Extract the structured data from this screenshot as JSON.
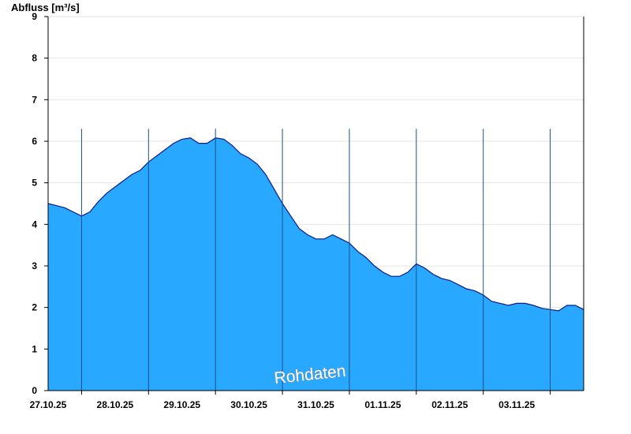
{
  "chart_data": {
    "type": "area",
    "ylabel": "Abfluss [m³/s]",
    "ylim": [
      0,
      9
    ],
    "yticks": [
      0,
      1,
      2,
      3,
      4,
      5,
      6,
      7,
      8,
      9
    ],
    "xlim": [
      "26.10.25 12:00",
      "03.11.25 12:00"
    ],
    "day_boundaries": [
      "27.10.25 00:00",
      "28.10.25 00:00",
      "29.10.25 00:00",
      "30.10.25 00:00",
      "31.10.25 00:00",
      "01.11.25 00:00",
      "02.11.25 00:00",
      "03.11.25 00:00"
    ],
    "x_tick_labels": [
      "27.10.25",
      "28.10.25",
      "29.10.25",
      "30.10.25",
      "31.10.25",
      "01.11.25",
      "02.11.25",
      "03.11.25"
    ],
    "grid": true,
    "fill_color": "#29a8ff",
    "line_color": "#0a1a8a",
    "annotation": "Rohdaten",
    "series": [
      {
        "x": [
          "26.10.25 12:00",
          "26.10.25 15:00",
          "26.10.25 18:00",
          "26.10.25 21:00",
          "27.10.25 00:00",
          "27.10.25 03:00",
          "27.10.25 06:00",
          "27.10.25 09:00",
          "27.10.25 12:00",
          "27.10.25 15:00",
          "27.10.25 18:00",
          "27.10.25 21:00",
          "28.10.25 00:00",
          "28.10.25 03:00",
          "28.10.25 06:00",
          "28.10.25 09:00",
          "28.10.25 12:00",
          "28.10.25 15:00",
          "28.10.25 18:00",
          "28.10.25 21:00",
          "29.10.25 00:00",
          "29.10.25 03:00",
          "29.10.25 06:00",
          "29.10.25 09:00",
          "29.10.25 12:00",
          "29.10.25 15:00",
          "29.10.25 18:00",
          "29.10.25 21:00",
          "30.10.25 00:00",
          "30.10.25 03:00",
          "30.10.25 06:00",
          "30.10.25 09:00",
          "30.10.25 12:00",
          "30.10.25 15:00",
          "30.10.25 18:00",
          "30.10.25 21:00",
          "31.10.25 00:00",
          "31.10.25 03:00",
          "31.10.25 06:00",
          "31.10.25 09:00",
          "31.10.25 12:00",
          "31.10.25 15:00",
          "31.10.25 18:00",
          "31.10.25 21:00",
          "01.11.25 00:00",
          "01.11.25 03:00",
          "01.11.25 06:00",
          "01.11.25 09:00",
          "01.11.25 12:00",
          "01.11.25 15:00",
          "01.11.25 18:00",
          "01.11.25 21:00",
          "02.11.25 00:00",
          "02.11.25 03:00",
          "02.11.25 06:00",
          "02.11.25 09:00",
          "02.11.25 12:00",
          "02.11.25 15:00",
          "02.11.25 18:00",
          "02.11.25 21:00",
          "03.11.25 00:00",
          "03.11.25 03:00",
          "03.11.25 06:00",
          "03.11.25 09:00",
          "03.11.25 12:00"
        ],
        "y": [
          4.5,
          4.45,
          4.4,
          4.3,
          4.2,
          4.3,
          4.55,
          4.75,
          4.9,
          5.05,
          5.2,
          5.3,
          5.5,
          5.65,
          5.8,
          5.95,
          6.05,
          6.08,
          5.95,
          5.95,
          6.08,
          6.05,
          5.9,
          5.7,
          5.6,
          5.45,
          5.2,
          4.85,
          4.5,
          4.2,
          3.9,
          3.75,
          3.65,
          3.65,
          3.75,
          3.65,
          3.55,
          3.35,
          3.2,
          3.0,
          2.85,
          2.75,
          2.75,
          2.85,
          3.05,
          2.95,
          2.8,
          2.7,
          2.65,
          2.55,
          2.45,
          2.4,
          2.3,
          2.15,
          2.1,
          2.05,
          2.1,
          2.1,
          2.05,
          1.98,
          1.95,
          1.92,
          2.05,
          2.05,
          1.95
        ]
      }
    ]
  }
}
